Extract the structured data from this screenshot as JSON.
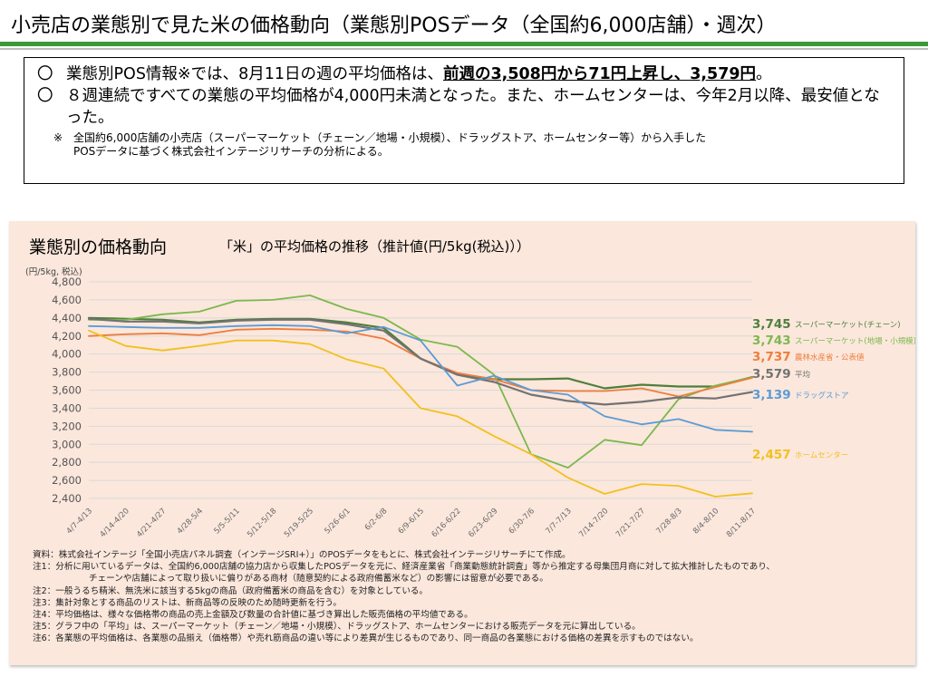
{
  "header": {
    "title": "小売店の業態別で見た米の価格動向（業態別POSデータ（全国約6,000店舗）・週次）"
  },
  "summary": {
    "bullet1_mark": "〇",
    "bullet1_text_a": "業態別POS情報※では、8月11日の週の平均価格は、",
    "bullet1_text_b": "前週の3,508円から71円上昇し、3,579円",
    "bullet1_text_c": "。",
    "bullet2_mark": "〇",
    "bullet2_text": "８週連続ですべての業態の平均価格が4,000円未満となった。また、ホームセンターは、今年2月以降、最安値となった。",
    "note_mark": "※",
    "note_line1": "全国約6,000店舗の小売店（スーパーマーケット（チェーン／地場・小規模）、ドラッグストア、ホームセンター等）から入手した",
    "note_line2": "POSデータに基づく株式会社インテージリサーチの分析による。"
  },
  "chart_panel": {
    "title": "業態別の価格動向",
    "subtitle": "「米」の平均価格の推移（推計値(円/5kg(税込)））",
    "unit": "(円/5kg, 税込)"
  },
  "chart_data": {
    "type": "line",
    "categories": [
      "4/7-4/13",
      "4/14-4/20",
      "4/21-4/27",
      "4/28-5/4",
      "5/5-5/11",
      "5/12-5/18",
      "5/19-5/25",
      "5/26-6/1",
      "6/2-6/8",
      "6/9-6/15",
      "6/16-6/22",
      "6/23-6/29",
      "6/30-7/6",
      "7/7-7/13",
      "7/14-7/20",
      "7/21-7/27",
      "7/28-8/3",
      "8/4-8/10",
      "8/11-8/17"
    ],
    "ylim": [
      2400,
      4800
    ],
    "yticks": [
      "2,400",
      "2,600",
      "2,800",
      "3,000",
      "3,200",
      "3,400",
      "3,600",
      "3,800",
      "4,000",
      "4,200",
      "4,400",
      "4,600",
      "4,800"
    ],
    "grid": true,
    "series": [
      {
        "name": "スーパーマーケット(チェーン)",
        "label_value": "3,745",
        "color": "#4e7f3c",
        "width": 2.2,
        "values": [
          4400,
          4390,
          4380,
          4350,
          4380,
          4390,
          4390,
          4350,
          4290,
          3950,
          3780,
          3720,
          3720,
          3730,
          3620,
          3660,
          3640,
          3640,
          3745
        ]
      },
      {
        "name": "スーパーマーケット(地場・小規模)",
        "label_value": "3,743",
        "color": "#7cb84e",
        "width": 1.8,
        "values": [
          4380,
          4380,
          4440,
          4470,
          4590,
          4600,
          4650,
          4500,
          4400,
          4160,
          4080,
          3770,
          2890,
          2740,
          3050,
          2990,
          3500,
          3650,
          3743
        ]
      },
      {
        "name": "農林水産省・公表値",
        "label_value": "3,737",
        "color": "#ee7d3c",
        "width": 1.8,
        "values": [
          4200,
          4220,
          4230,
          4210,
          4270,
          4280,
          4270,
          4250,
          4170,
          3950,
          3790,
          3720,
          3600,
          3590,
          3590,
          3620,
          3530,
          null,
          3737
        ]
      },
      {
        "name": "平均",
        "label_value": "3,579",
        "color": "#727272",
        "width": 2.2,
        "values": [
          4390,
          4360,
          4360,
          4340,
          4370,
          4380,
          4380,
          4330,
          4260,
          3950,
          3770,
          3690,
          3550,
          3480,
          3440,
          3470,
          3520,
          3508,
          3579
        ]
      },
      {
        "name": "ドラッグストア",
        "label_value": "3,139",
        "color": "#5b9bd5",
        "width": 1.8,
        "values": [
          4310,
          4300,
          4290,
          4290,
          4310,
          4320,
          4310,
          4230,
          4300,
          4150,
          3650,
          3760,
          3600,
          3550,
          3310,
          3220,
          3280,
          3160,
          3139
        ]
      },
      {
        "name": "ホームセンター",
        "label_value": "2,457",
        "color": "#f2c01e",
        "width": 1.8,
        "values": [
          4260,
          4090,
          4040,
          4090,
          4150,
          4150,
          4110,
          3940,
          3840,
          3400,
          3310,
          3090,
          2890,
          2630,
          2450,
          2560,
          2540,
          2420,
          2457
        ]
      }
    ]
  },
  "footnotes": [
    "資料：株式会社インテージ「全国小売店パネル調査（インテージSRI+）」のPOSデータをもとに、株式会社インテージリサーチにて作成。",
    "注1：分析に用いているデータは、全国約6,000店舗の協力店から収集したPOSデータを元に、経済産業省「商業動態統計調査」等から推定する母集団月商に対して拡大推計したものであり、",
    "チェーンや店舗によって取り扱いに偏りがある商材（随意契約による政府備蓄米など）の影響には留意が必要である。",
    "注2：一般うるち精米、無洗米に該当する5kgの商品（政府備蓄米の商品を含む）を対象としている。",
    "注3：集計対象とする商品のリストは、新商品等の反映のため随時更新を行う。",
    "注4：平均価格は、様々な価格帯の商品の売上金額及び数量の合計値に基づき算出した販売価格の平均値である。",
    "注5：グラフ中の「平均」は、スーパーマーケット（チェーン／地場・小規模）、ドラッグストア、ホームセンターにおける販売データを元に算出している。",
    "注6：各業態の平均価格は、各業態の品揃え（価格帯）や売れ筋商品の違い等により差異が生じるものであり、同一商品の各業態における価格の差異を示すものではない。"
  ]
}
